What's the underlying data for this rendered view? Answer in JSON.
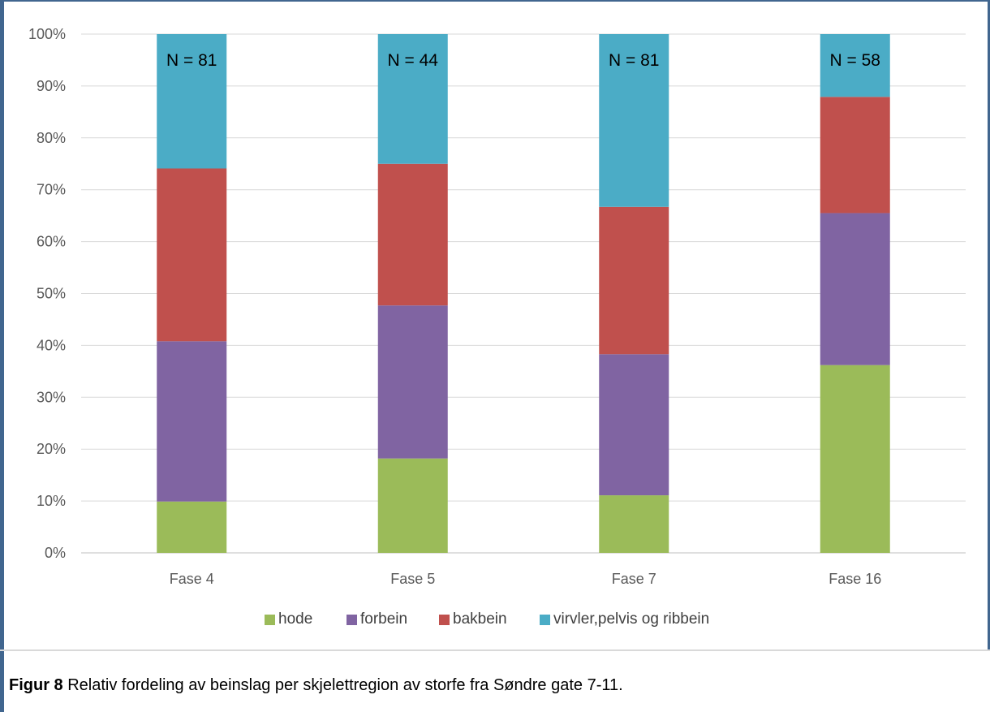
{
  "chart_data": {
    "type": "bar",
    "stacked": true,
    "percent": true,
    "categories": [
      "Fase 4",
      "Fase 5",
      "Fase 7",
      "Fase 16"
    ],
    "series": [
      {
        "name": "hode",
        "color": "#9bbb59",
        "values": [
          9.9,
          18.2,
          11.1,
          36.2
        ]
      },
      {
        "name": "forbein",
        "color": "#8064a2",
        "values": [
          30.9,
          29.5,
          27.2,
          29.3
        ]
      },
      {
        "name": "bakbein",
        "color": "#c0504d",
        "values": [
          33.3,
          27.3,
          28.4,
          22.4
        ]
      },
      {
        "name": "virvler,pelvis og ribbein",
        "color": "#4bacc6",
        "values": [
          25.9,
          25.0,
          33.3,
          12.1
        ]
      }
    ],
    "annotations": [
      "N = 81",
      "N = 44",
      "N = 81",
      "N = 58"
    ],
    "y_ticks": [
      "0%",
      "10%",
      "20%",
      "30%",
      "40%",
      "50%",
      "60%",
      "70%",
      "80%",
      "90%",
      "100%"
    ],
    "ylim": [
      0,
      100
    ],
    "grid": true,
    "legend_position": "bottom"
  },
  "caption": {
    "label": "Figur 8",
    "text": " Relativ fordeling av beinslag per skjelettregion av storfe fra Søndre gate 7-11."
  }
}
